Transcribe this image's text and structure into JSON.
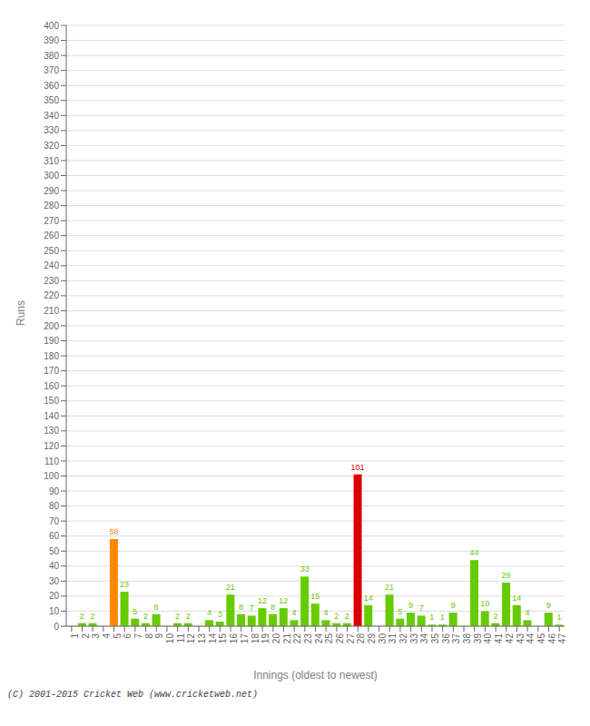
{
  "chart_data": {
    "type": "bar",
    "xlabel": "Innings (oldest to newest)",
    "ylabel": "Runs",
    "categories": [
      "1",
      "2",
      "3",
      "4",
      "5",
      "6",
      "7",
      "8",
      "9",
      "10",
      "11",
      "12",
      "13",
      "14",
      "15",
      "16",
      "17",
      "18",
      "19",
      "20",
      "21",
      "22",
      "23",
      "24",
      "25",
      "26",
      "27",
      "28",
      "29",
      "30",
      "31",
      "32",
      "33",
      "34",
      "35",
      "36",
      "37",
      "38",
      "39",
      "40",
      "41",
      "42",
      "43",
      "44",
      "45",
      "46",
      "47"
    ],
    "values": [
      0,
      2,
      2,
      0,
      58,
      23,
      5,
      2,
      8,
      0,
      2,
      2,
      0,
      4,
      3,
      21,
      8,
      7,
      12,
      8,
      12,
      4,
      33,
      15,
      4,
      2,
      2,
      101,
      14,
      0,
      21,
      5,
      9,
      7,
      1,
      1,
      9,
      0,
      44,
      10,
      2,
      29,
      14,
      4,
      0,
      9,
      1
    ],
    "colors": [
      "#66cc00",
      "#66cc00",
      "#66cc00",
      "#66cc00",
      "#ff8800",
      "#66cc00",
      "#66cc00",
      "#66cc00",
      "#66cc00",
      "#66cc00",
      "#66cc00",
      "#66cc00",
      "#66cc00",
      "#66cc00",
      "#66cc00",
      "#66cc00",
      "#66cc00",
      "#66cc00",
      "#66cc00",
      "#66cc00",
      "#66cc00",
      "#66cc00",
      "#66cc00",
      "#66cc00",
      "#66cc00",
      "#66cc00",
      "#66cc00",
      "#dd0000",
      "#66cc00",
      "#66cc00",
      "#66cc00",
      "#66cc00",
      "#66cc00",
      "#66cc00",
      "#66cc00",
      "#66cc00",
      "#66cc00",
      "#66cc00",
      "#66cc00",
      "#66cc00",
      "#66cc00",
      "#66cc00",
      "#66cc00",
      "#66cc00",
      "#66cc00",
      "#66cc00",
      "#66cc00"
    ],
    "ylim": [
      0,
      400
    ],
    "yticks": [
      0,
      10,
      20,
      30,
      40,
      50,
      60,
      70,
      80,
      90,
      100,
      110,
      120,
      130,
      140,
      150,
      160,
      170,
      180,
      190,
      200,
      210,
      220,
      230,
      240,
      250,
      260,
      270,
      280,
      290,
      300,
      310,
      320,
      330,
      340,
      350,
      360,
      370,
      380,
      390,
      400
    ],
    "grid": true,
    "data_labels": true,
    "footer": "(C) 2001-2015 Cricket Web (www.cricketweb.net)"
  }
}
